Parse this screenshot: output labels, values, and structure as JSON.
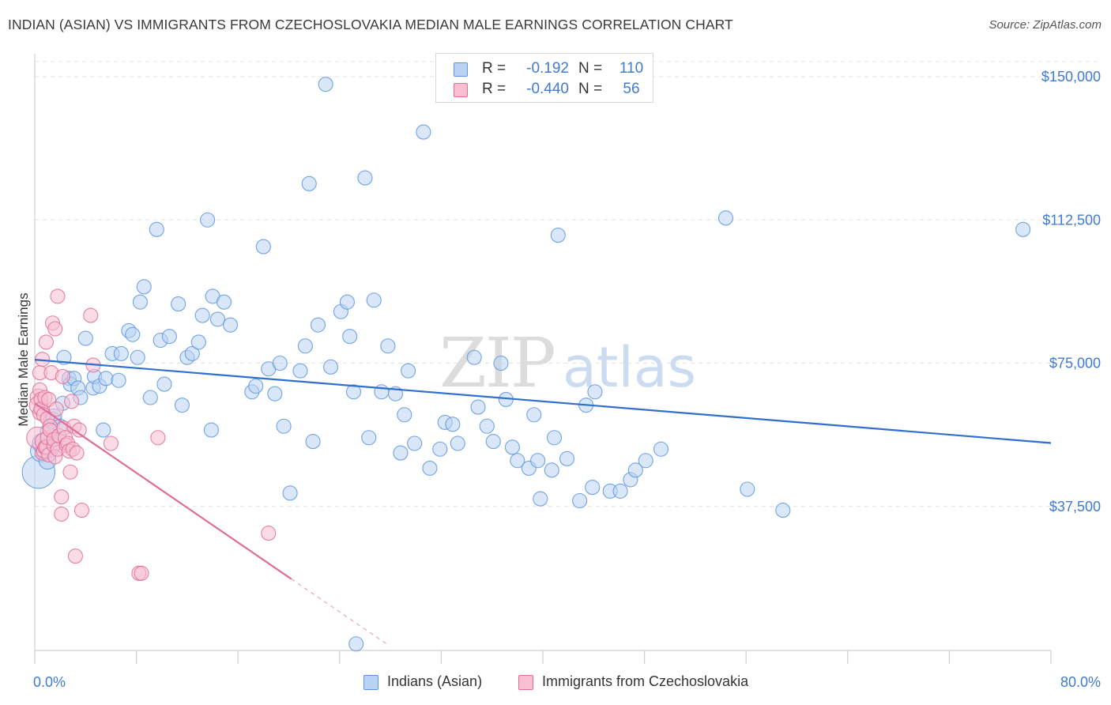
{
  "title": "INDIAN (ASIAN) VS IMMIGRANTS FROM CZECHOSLOVAKIA MEDIAN MALE EARNINGS CORRELATION CHART",
  "source": "Source: ZipAtlas.com",
  "watermark": {
    "zip": "ZIP",
    "atlas": "atlas"
  },
  "legend": {
    "r_label": "R =",
    "n_label": "N =",
    "series": [
      {
        "name": "Indians (Asian)",
        "r": "-0.192",
        "n": "110",
        "color": "#5b95df",
        "fill": "#b9d3f3"
      },
      {
        "name": "Immigrants from Czechoslovakia",
        "r": "-0.440",
        "n": "56",
        "color": "#e06c97",
        "fill": "#f7bfd1"
      }
    ]
  },
  "chart_data": {
    "type": "scatter",
    "title": "INDIAN (ASIAN) VS IMMIGRANTS FROM CZECHOSLOVAKIA MEDIAN MALE EARNINGS CORRELATION CHART",
    "xlabel": "",
    "ylabel": "Median Male Earnings",
    "xlim": [
      0,
      80
    ],
    "ylim": [
      0,
      155000
    ],
    "x_tick_labels": [
      "0.0%",
      "80.0%"
    ],
    "y_ticks": [
      37500,
      75000,
      112500,
      150000
    ],
    "y_tick_labels": [
      "$37,500",
      "$75,000",
      "$112,500",
      "$150,000"
    ],
    "grid": true,
    "series": [
      {
        "name": "Indians (Asian)",
        "color": "#5b95df",
        "fill": "#b9d3f3",
        "trend": {
          "x0": 0,
          "y0": 75900,
          "x1": 80,
          "y1": 54100
        },
        "points": [
          [
            0.3,
            46500,
            2.3
          ],
          [
            0.5,
            52000,
            1.5
          ],
          [
            0.6,
            54000,
            1.4
          ],
          [
            1.0,
            49500,
            1.2
          ],
          [
            1.1,
            57000,
            1.2
          ],
          [
            1.3,
            52500,
            1.1
          ],
          [
            1.4,
            60000,
            1.2
          ],
          [
            1.5,
            61000,
            1.1
          ],
          [
            2.0,
            58500,
            1
          ],
          [
            2.2,
            64500,
            1
          ],
          [
            2.3,
            76500,
            1
          ],
          [
            2.7,
            71000,
            1
          ],
          [
            2.8,
            69500,
            1
          ],
          [
            3.1,
            71000,
            1
          ],
          [
            3.4,
            68500,
            1
          ],
          [
            3.6,
            66000,
            1
          ],
          [
            4.0,
            81500,
            1
          ],
          [
            4.6,
            68500,
            1
          ],
          [
            4.7,
            71500,
            1
          ],
          [
            5.1,
            69000,
            1
          ],
          [
            5.4,
            57500,
            1
          ],
          [
            5.6,
            71000,
            1
          ],
          [
            6.1,
            77500,
            1
          ],
          [
            6.6,
            70500,
            1
          ],
          [
            6.8,
            77500,
            1
          ],
          [
            7.4,
            83500,
            1
          ],
          [
            7.7,
            82500,
            1
          ],
          [
            8.1,
            76500,
            1
          ],
          [
            8.3,
            91000,
            1
          ],
          [
            8.6,
            95000,
            1
          ],
          [
            9.1,
            66000,
            1
          ],
          [
            9.6,
            110000,
            1
          ],
          [
            9.9,
            81000,
            1
          ],
          [
            10.2,
            69500,
            1
          ],
          [
            10.6,
            82000,
            1
          ],
          [
            11.3,
            90500,
            1
          ],
          [
            11.6,
            64000,
            1
          ],
          [
            12.0,
            76500,
            1
          ],
          [
            12.4,
            77500,
            1
          ],
          [
            12.9,
            80500,
            1
          ],
          [
            13.2,
            87500,
            1
          ],
          [
            13.6,
            112500,
            1
          ],
          [
            13.9,
            57500,
            1
          ],
          [
            14.0,
            92500,
            1
          ],
          [
            14.4,
            86500,
            1
          ],
          [
            14.9,
            91000,
            1
          ],
          [
            15.4,
            85000,
            1
          ],
          [
            17.1,
            67500,
            1
          ],
          [
            17.4,
            69000,
            1
          ],
          [
            18.0,
            105500,
            1
          ],
          [
            18.4,
            73500,
            1
          ],
          [
            18.9,
            67000,
            1
          ],
          [
            19.3,
            75000,
            1
          ],
          [
            19.6,
            58500,
            1
          ],
          [
            20.1,
            41000,
            1
          ],
          [
            20.9,
            73000,
            1
          ],
          [
            21.3,
            79500,
            1
          ],
          [
            21.6,
            122000,
            1
          ],
          [
            21.9,
            54500,
            1
          ],
          [
            22.3,
            85000,
            1
          ],
          [
            22.9,
            148000,
            1
          ],
          [
            23.3,
            74000,
            1
          ],
          [
            24.1,
            88500,
            1
          ],
          [
            24.6,
            91000,
            1
          ],
          [
            24.8,
            82000,
            1
          ],
          [
            25.1,
            67500,
            1
          ],
          [
            25.3,
            1500,
            1
          ],
          [
            26.0,
            123500,
            1
          ],
          [
            26.3,
            55500,
            1
          ],
          [
            26.7,
            91500,
            1
          ],
          [
            27.3,
            67500,
            1
          ],
          [
            27.8,
            79500,
            1
          ],
          [
            28.4,
            67000,
            1
          ],
          [
            28.8,
            51500,
            1
          ],
          [
            29.1,
            61500,
            1
          ],
          [
            29.4,
            73000,
            1
          ],
          [
            29.9,
            54000,
            1
          ],
          [
            30.6,
            135500,
            1
          ],
          [
            31.1,
            47500,
            1
          ],
          [
            31.9,
            52500,
            1
          ],
          [
            32.3,
            59500,
            1
          ],
          [
            32.9,
            59000,
            1
          ],
          [
            33.3,
            54000,
            1
          ],
          [
            34.6,
            76500,
            1
          ],
          [
            34.9,
            63500,
            1
          ],
          [
            35.6,
            58500,
            1
          ],
          [
            36.1,
            54500,
            1
          ],
          [
            36.7,
            75000,
            1
          ],
          [
            37.1,
            65500,
            1
          ],
          [
            37.6,
            53000,
            1
          ],
          [
            38.0,
            49500,
            1
          ],
          [
            38.9,
            47500,
            1
          ],
          [
            39.3,
            61500,
            1
          ],
          [
            39.6,
            49500,
            1
          ],
          [
            39.8,
            39500,
            1
          ],
          [
            40.7,
            47000,
            1
          ],
          [
            40.9,
            55500,
            1
          ],
          [
            41.2,
            108500,
            1
          ],
          [
            41.9,
            50000,
            1
          ],
          [
            42.9,
            39000,
            1
          ],
          [
            43.4,
            64000,
            1
          ],
          [
            43.9,
            42500,
            1
          ],
          [
            44.1,
            67500,
            1
          ],
          [
            45.3,
            41500,
            1
          ],
          [
            46.1,
            41500,
            1
          ],
          [
            46.9,
            44500,
            1
          ],
          [
            47.3,
            47000,
            1
          ],
          [
            48.1,
            49500,
            1
          ],
          [
            49.3,
            52500,
            1
          ],
          [
            54.4,
            113000,
            1
          ],
          [
            56.1,
            42000,
            1
          ],
          [
            58.9,
            36500,
            1
          ],
          [
            77.8,
            110000,
            1
          ]
        ]
      },
      {
        "name": "Immigrants from Czechoslovakia",
        "color": "#e06c97",
        "fill": "#f7bfd1",
        "trend": {
          "x0": 0,
          "y0": 64500,
          "x1": 20.2,
          "y1": 18500
        },
        "trend_dashed_to": {
          "x": 27.7,
          "y": 1500
        },
        "points": [
          [
            0.2,
            55500,
            1.5
          ],
          [
            0.3,
            66000,
            1.2
          ],
          [
            0.3,
            64000,
            1.3
          ],
          [
            0.4,
            68000,
            1
          ],
          [
            0.4,
            72500,
            1
          ],
          [
            0.4,
            62000,
            1
          ],
          [
            0.5,
            65500,
            1
          ],
          [
            0.5,
            63000,
            1
          ],
          [
            0.6,
            76000,
            1
          ],
          [
            0.6,
            51500,
            1
          ],
          [
            0.7,
            61500,
            1
          ],
          [
            0.7,
            54500,
            1.2
          ],
          [
            0.7,
            52000,
            1
          ],
          [
            0.8,
            53000,
            1
          ],
          [
            0.8,
            66000,
            1
          ],
          [
            0.9,
            80500,
            1
          ],
          [
            0.9,
            53000,
            1
          ],
          [
            1.0,
            60500,
            1
          ],
          [
            1.0,
            55500,
            1
          ],
          [
            1.1,
            65500,
            1
          ],
          [
            1.1,
            51000,
            1
          ],
          [
            1.2,
            58500,
            1
          ],
          [
            1.2,
            57500,
            1
          ],
          [
            1.3,
            72500,
            1
          ],
          [
            1.4,
            85500,
            1
          ],
          [
            1.5,
            53500,
            1
          ],
          [
            1.5,
            55000,
            1
          ],
          [
            1.6,
            84000,
            1
          ],
          [
            1.6,
            50500,
            1
          ],
          [
            1.7,
            63000,
            1
          ],
          [
            1.8,
            92500,
            1
          ],
          [
            1.8,
            52500,
            1
          ],
          [
            1.9,
            56000,
            1
          ],
          [
            2.1,
            40000,
            1
          ],
          [
            2.1,
            35500,
            1
          ],
          [
            2.2,
            71500,
            1
          ],
          [
            2.3,
            58000,
            1
          ],
          [
            2.4,
            55500,
            1
          ],
          [
            2.5,
            53500,
            1
          ],
          [
            2.6,
            54000,
            1
          ],
          [
            2.7,
            52000,
            1
          ],
          [
            2.8,
            46500,
            1
          ],
          [
            2.9,
            65000,
            1
          ],
          [
            3.0,
            52500,
            1
          ],
          [
            3.1,
            58500,
            1
          ],
          [
            3.2,
            24500,
            1
          ],
          [
            3.3,
            51500,
            1
          ],
          [
            3.5,
            57500,
            1
          ],
          [
            3.7,
            36500,
            1
          ],
          [
            4.4,
            87500,
            1
          ],
          [
            4.6,
            74500,
            1
          ],
          [
            6.0,
            54000,
            1
          ],
          [
            8.2,
            20000,
            1
          ],
          [
            8.4,
            20000,
            1
          ],
          [
            9.7,
            55500,
            1
          ],
          [
            18.4,
            30500,
            1
          ]
        ]
      }
    ]
  }
}
